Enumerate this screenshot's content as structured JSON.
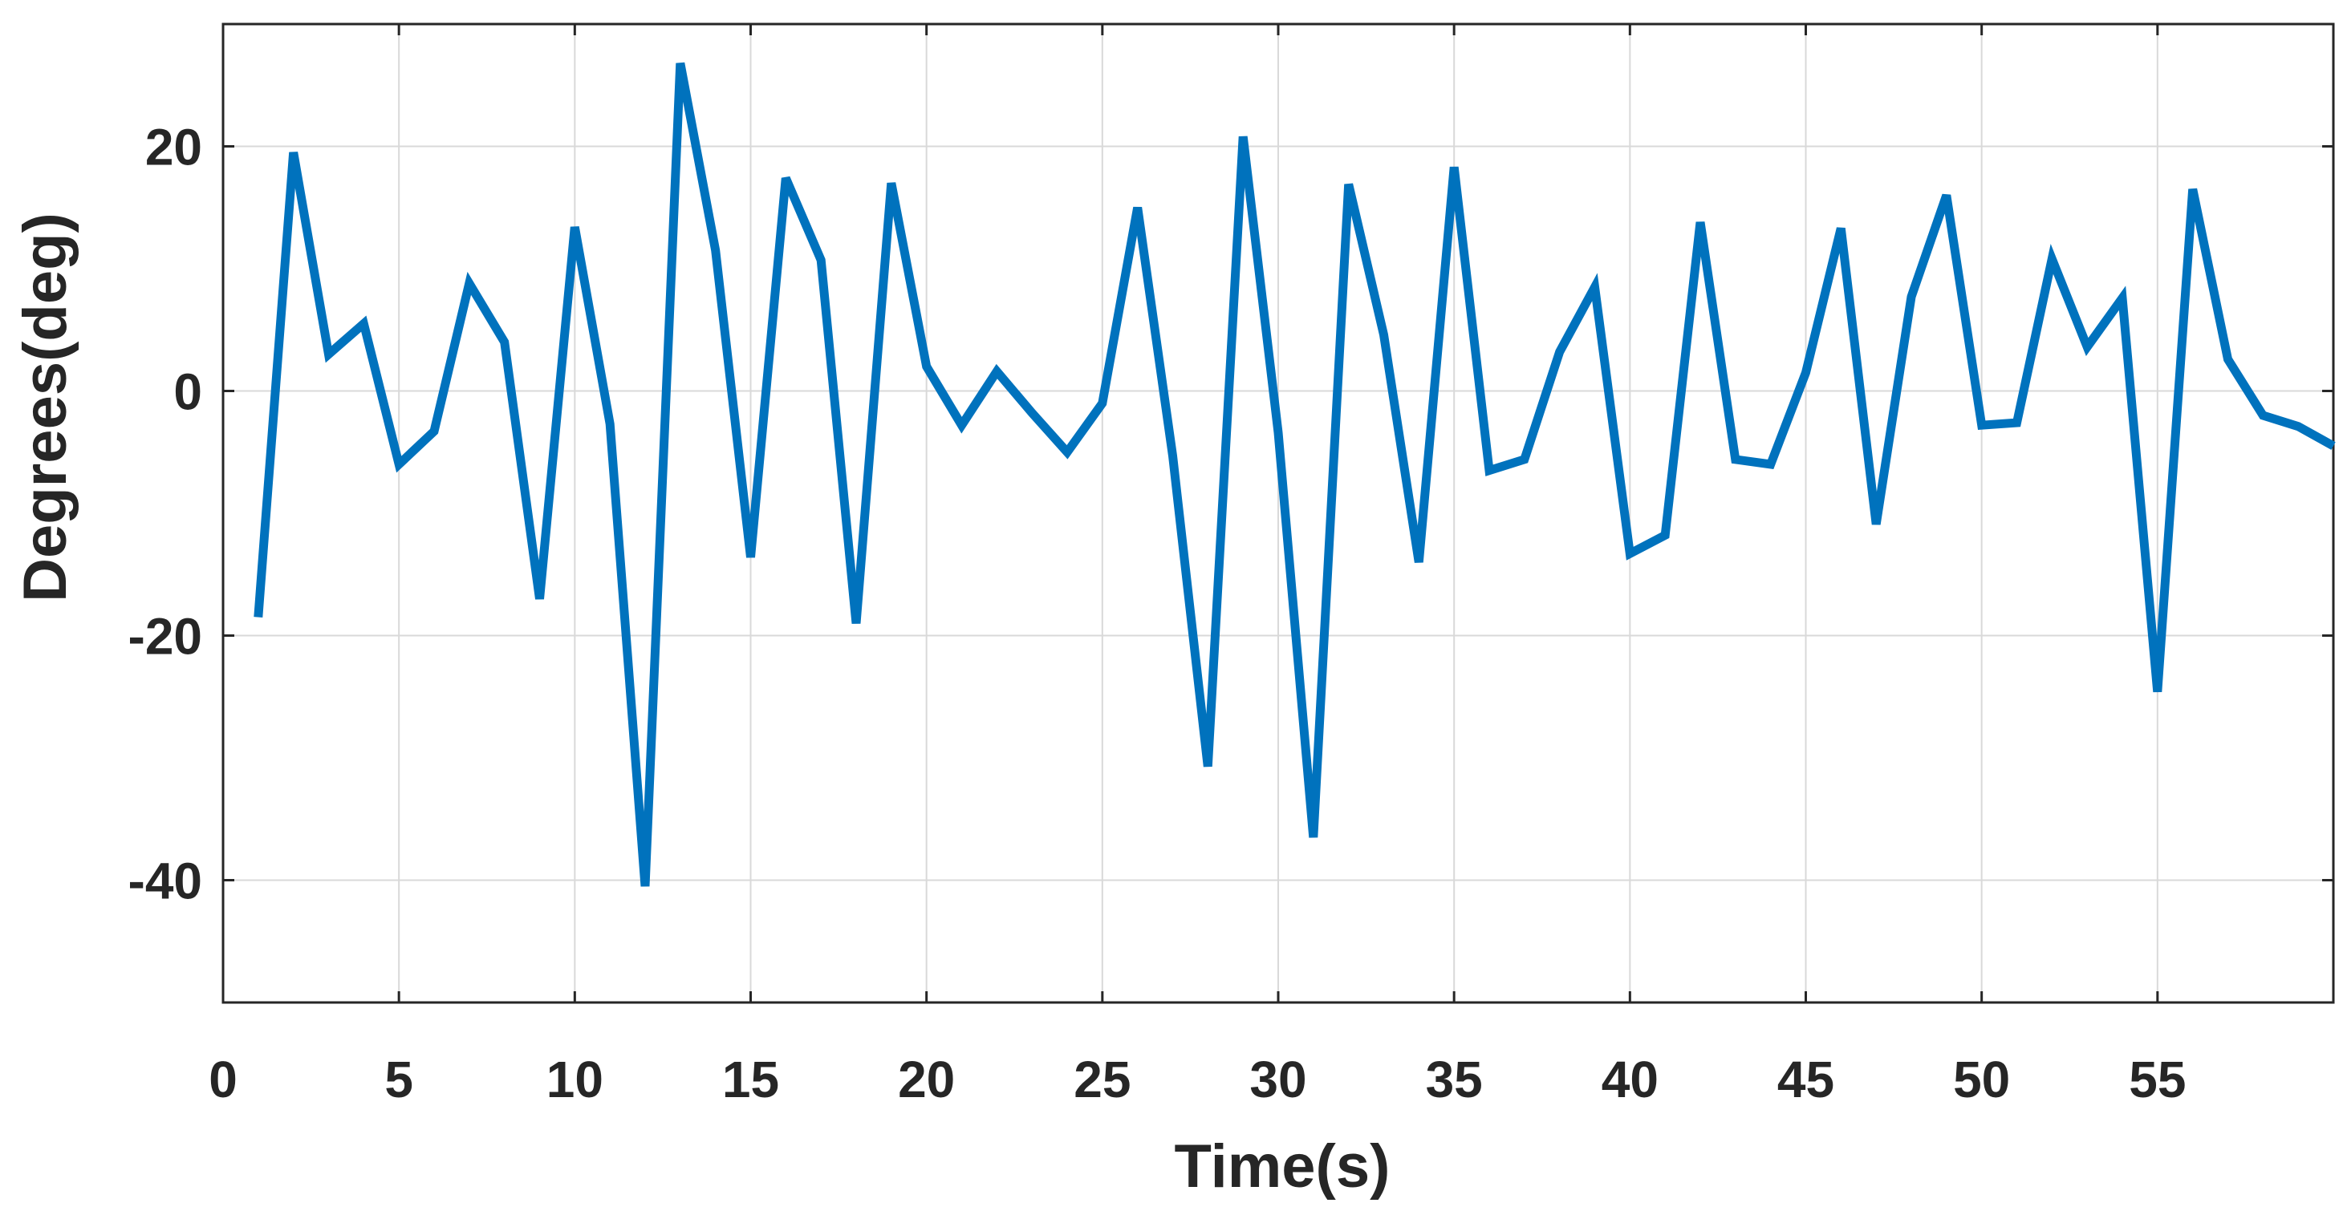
{
  "chart_data": {
    "type": "line",
    "title": "",
    "xlabel": "Time(s)",
    "ylabel": "Degrees(deg)",
    "xlim": [
      0,
      60
    ],
    "ylim": [
      -50,
      30
    ],
    "xticks": [
      0,
      5,
      10,
      15,
      20,
      25,
      30,
      35,
      40,
      45,
      50,
      55
    ],
    "yticks": [
      -40,
      -20,
      0,
      20
    ],
    "grid": true,
    "colors": {
      "series": "#0072BD",
      "axis": "#262626",
      "grid": "#d9d9d9"
    },
    "series": [
      {
        "x": [
          1,
          2,
          3,
          4,
          5,
          6,
          7,
          8,
          9,
          10,
          11,
          12,
          13,
          14,
          15,
          16,
          17,
          18,
          19,
          20,
          21,
          22,
          23,
          24,
          25,
          26,
          27,
          28,
          29,
          30,
          31,
          32,
          33,
          34,
          35,
          36,
          37,
          38,
          39,
          40,
          41,
          42,
          43,
          44,
          45,
          46,
          47,
          48,
          49,
          50,
          51,
          52,
          53,
          54,
          55,
          56,
          57,
          58,
          59,
          60
        ],
        "values": [
          -18.5,
          19.5,
          3,
          5.5,
          -6,
          -3.3,
          8.8,
          4,
          -17,
          13.4,
          -2.7,
          -40.5,
          26.8,
          11.5,
          -13.6,
          17.4,
          10.7,
          -19,
          17,
          2,
          -2.8,
          1.6,
          -1.8,
          -5,
          -1,
          15,
          -5.3,
          -30.7,
          20.8,
          -3.4,
          -36.5,
          16.9,
          4.6,
          -14,
          18.3,
          -6.5,
          -5.6,
          3.2,
          8.5,
          -13.3,
          -11.8,
          13.8,
          -5.6,
          -6,
          1.5,
          13.3,
          -10.9,
          7.7,
          16,
          -2.8,
          -2.6,
          10.8,
          3.6,
          7.6,
          -24.6,
          16.5,
          2.6,
          -2,
          -2.9,
          -4.5
        ]
      }
    ]
  }
}
